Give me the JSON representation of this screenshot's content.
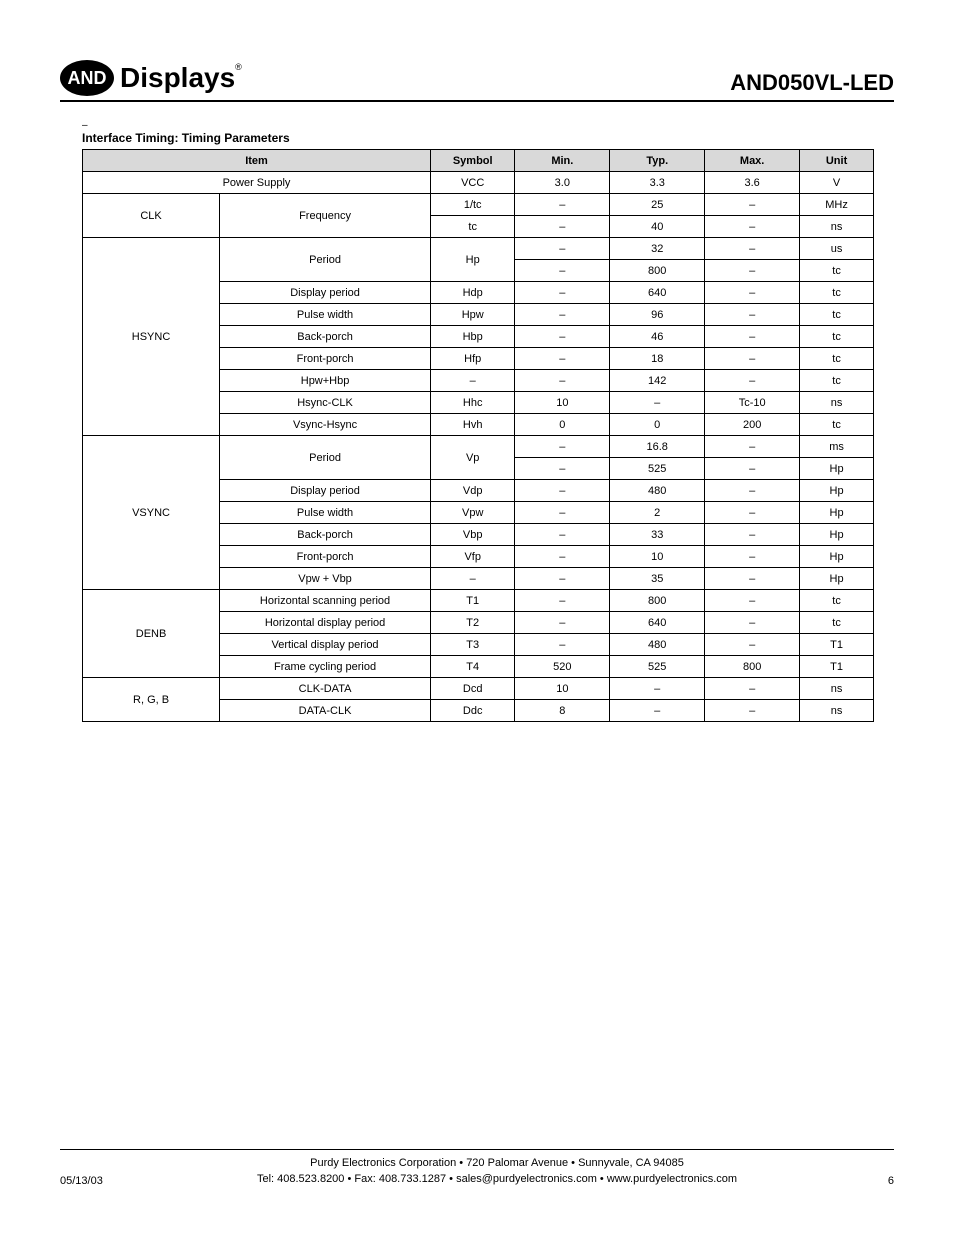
{
  "header": {
    "logo_mark": "AND",
    "logo_text": "Displays",
    "reg": "®",
    "part_number": "AND050VL-LED"
  },
  "section": {
    "dash": "–",
    "title": "Interface Timing: Timing Parameters"
  },
  "table": {
    "headers": {
      "item": "Item",
      "symbol": "Symbol",
      "min": "Min.",
      "typ": "Typ.",
      "max": "Max.",
      "unit": "Unit"
    },
    "groups": [
      {
        "label": "",
        "rows": [
          {
            "sub": "Power Supply",
            "span_item": true,
            "symbol": "VCC",
            "min": "3.0",
            "typ": "3.3",
            "max": "3.6",
            "unit": "V"
          }
        ]
      },
      {
        "label": "CLK",
        "subs": [
          {
            "sub": "Frequency",
            "subrows": 2,
            "cells": [
              {
                "symbol": "1/tc",
                "min": "–",
                "typ": "25",
                "max": "–",
                "unit": "MHz"
              },
              {
                "symbol": "tc",
                "min": "–",
                "typ": "40",
                "max": "–",
                "unit": "ns"
              }
            ]
          }
        ]
      },
      {
        "label": "HSYNC",
        "subs": [
          {
            "sub": "Period",
            "subrows": 2,
            "symbol_span": true,
            "symbol": "Hp",
            "cells": [
              {
                "min": "–",
                "typ": "32",
                "max": "–",
                "unit": "us"
              },
              {
                "min": "–",
                "typ": "800",
                "max": "–",
                "unit": "tc"
              }
            ]
          },
          {
            "sub": "Display period",
            "cells": [
              {
                "symbol": "Hdp",
                "min": "–",
                "typ": "640",
                "max": "–",
                "unit": "tc"
              }
            ]
          },
          {
            "sub": "Pulse width",
            "cells": [
              {
                "symbol": "Hpw",
                "min": "–",
                "typ": "96",
                "max": "–",
                "unit": "tc"
              }
            ]
          },
          {
            "sub": "Back-porch",
            "cells": [
              {
                "symbol": "Hbp",
                "min": "–",
                "typ": "46",
                "max": "–",
                "unit": "tc"
              }
            ]
          },
          {
            "sub": "Front-porch",
            "cells": [
              {
                "symbol": "Hfp",
                "min": "–",
                "typ": "18",
                "max": "–",
                "unit": "tc"
              }
            ]
          },
          {
            "sub": "Hpw+Hbp",
            "cells": [
              {
                "symbol": "–",
                "min": "–",
                "typ": "142",
                "max": "–",
                "unit": "tc"
              }
            ]
          },
          {
            "sub": "Hsync-CLK",
            "cells": [
              {
                "symbol": "Hhc",
                "min": "10",
                "typ": "–",
                "max": "Tc-10",
                "unit": "ns"
              }
            ]
          },
          {
            "sub": "Vsync-Hsync",
            "cells": [
              {
                "symbol": "Hvh",
                "min": "0",
                "typ": "0",
                "max": "200",
                "unit": "tc"
              }
            ]
          }
        ]
      },
      {
        "label": "VSYNC",
        "subs": [
          {
            "sub": "Period",
            "subrows": 2,
            "symbol_span": true,
            "symbol": "Vp",
            "cells": [
              {
                "min": "–",
                "typ": "16.8",
                "max": "–",
                "unit": "ms"
              },
              {
                "min": "–",
                "typ": "525",
                "max": "–",
                "unit": "Hp"
              }
            ]
          },
          {
            "sub": "Display period",
            "cells": [
              {
                "symbol": "Vdp",
                "min": "–",
                "typ": "480",
                "max": "–",
                "unit": "Hp"
              }
            ]
          },
          {
            "sub": "Pulse width",
            "cells": [
              {
                "symbol": "Vpw",
                "min": "–",
                "typ": "2",
                "max": "–",
                "unit": "Hp"
              }
            ]
          },
          {
            "sub": "Back-porch",
            "cells": [
              {
                "symbol": "Vbp",
                "min": "–",
                "typ": "33",
                "max": "–",
                "unit": "Hp"
              }
            ]
          },
          {
            "sub": "Front-porch",
            "cells": [
              {
                "symbol": "Vfp",
                "min": "–",
                "typ": "10",
                "max": "–",
                "unit": "Hp"
              }
            ]
          },
          {
            "sub": "Vpw + Vbp",
            "cells": [
              {
                "symbol": "–",
                "min": "–",
                "typ": "35",
                "max": "–",
                "unit": "Hp"
              }
            ]
          }
        ]
      },
      {
        "label": "DENB",
        "subs": [
          {
            "sub": "Horizontal scanning period",
            "cells": [
              {
                "symbol": "T1",
                "min": "–",
                "typ": "800",
                "max": "–",
                "unit": "tc"
              }
            ]
          },
          {
            "sub": "Horizontal display period",
            "cells": [
              {
                "symbol": "T2",
                "min": "–",
                "typ": "640",
                "max": "–",
                "unit": "tc"
              }
            ]
          },
          {
            "sub": "Vertical display period",
            "cells": [
              {
                "symbol": "T3",
                "min": "–",
                "typ": "480",
                "max": "–",
                "unit": "T1"
              }
            ]
          },
          {
            "sub": "Frame cycling period",
            "cells": [
              {
                "symbol": "T4",
                "min": "520",
                "typ": "525",
                "max": "800",
                "unit": "T1"
              }
            ]
          }
        ]
      },
      {
        "label": "R, G, B",
        "subs": [
          {
            "sub": "CLK-DATA",
            "cells": [
              {
                "symbol": "Dcd",
                "min": "10",
                "typ": "–",
                "max": "–",
                "unit": "ns"
              }
            ]
          },
          {
            "sub": "DATA-CLK",
            "cells": [
              {
                "symbol": "Ddc",
                "min": "8",
                "typ": "–",
                "max": "–",
                "unit": "ns"
              }
            ]
          }
        ]
      }
    ]
  },
  "footer": {
    "date": "05/13/03",
    "line1": "Purdy Electronics Corporation  •  720 Palomar Avenue  •  Sunnyvale, CA 94085",
    "line2": "Tel: 408.523.8200  •  Fax: 408.733.1287  •  sales@purdyelectronics.com  •  www.purdyelectronics.com",
    "page": "6"
  }
}
